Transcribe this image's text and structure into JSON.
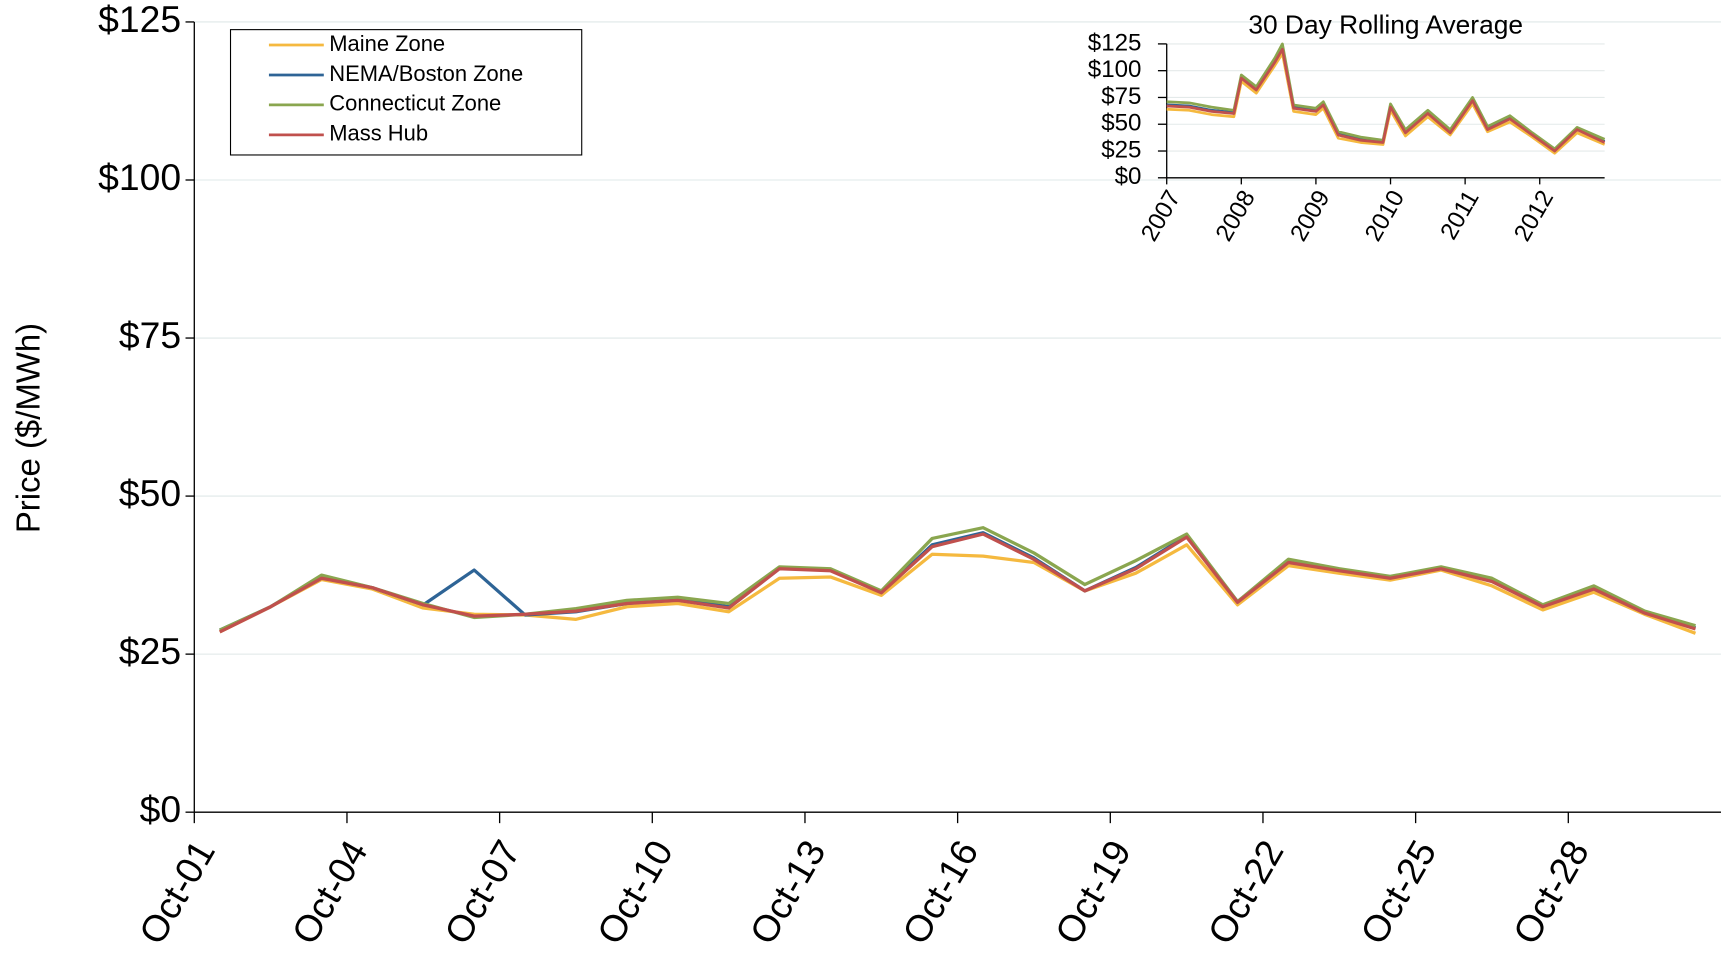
{
  "chart_data": [
    {
      "type": "line",
      "ylabel": "Price ($/MWh)",
      "categories": [
        "Oct-01",
        null,
        null,
        "Oct-04",
        null,
        null,
        "Oct-07",
        null,
        null,
        "Oct-10",
        null,
        null,
        "Oct-13",
        null,
        null,
        "Oct-16",
        null,
        null,
        "Oct-19",
        null,
        null,
        "Oct-22",
        null,
        null,
        "Oct-25",
        null,
        null,
        "Oct-28",
        null,
        null
      ],
      "ylim": [
        0,
        125
      ],
      "yticks": [
        {
          "value": 0,
          "label": "$0"
        },
        {
          "value": 25,
          "label": "$25"
        },
        {
          "value": 50,
          "label": "$50"
        },
        {
          "value": 75,
          "label": "$75"
        },
        {
          "value": 100,
          "label": "$100"
        },
        {
          "value": 125,
          "label": "$125"
        }
      ],
      "grid": true,
      "legend": "upper left",
      "series": [
        {
          "name": "Maine Zone",
          "color": "#f5b93f",
          "values": [
            28.5,
            32.5,
            36.8,
            35.3,
            32.3,
            31.3,
            31.2,
            30.5,
            32.5,
            33,
            31.7,
            37,
            37.2,
            34.3,
            40.8,
            40.5,
            39.5,
            35,
            37.8,
            42.3,
            32.8,
            39,
            37.8,
            36.7,
            38.3,
            35.8,
            32,
            34.8,
            31.3,
            28.3
          ]
        },
        {
          "name": "NEMA/Boston Zone",
          "color": "#2e6496",
          "values": [
            28.8,
            32.5,
            37.3,
            35.5,
            32.8,
            38.3,
            31.2,
            31.7,
            33,
            33.7,
            32.5,
            38.7,
            38.3,
            34.8,
            42.3,
            44.2,
            40.2,
            35,
            38.7,
            43.7,
            33.3,
            39.6,
            38.3,
            37.1,
            38.6,
            36.7,
            32.7,
            35.5,
            31.6,
            29.2
          ]
        },
        {
          "name": "Connecticut Zone",
          "color": "#8aa64f",
          "values": [
            28.8,
            32.5,
            37.5,
            35.5,
            33,
            30.8,
            31.3,
            32.2,
            33.5,
            34,
            33,
            38.8,
            38.5,
            35,
            43.3,
            45,
            41,
            36,
            39.8,
            44,
            33.3,
            40,
            38.5,
            37.3,
            38.8,
            37,
            32.8,
            35.8,
            31.8,
            29.5
          ]
        },
        {
          "name": "Mass Hub",
          "color": "#c0504d",
          "values": [
            28.5,
            32.5,
            37,
            35.5,
            32.8,
            31,
            31.3,
            31.8,
            33,
            33.5,
            32.3,
            38.5,
            38.2,
            34.7,
            42,
            44,
            40,
            35,
            38.5,
            43.5,
            33.2,
            39.5,
            38.2,
            37,
            38.5,
            36.5,
            32.5,
            35.3,
            31.5,
            29
          ]
        }
      ]
    },
    {
      "type": "line",
      "title": "30 Day Rolling Average",
      "x": [
        2007,
        2007.3,
        2007.6,
        2007.9,
        2008.0,
        2008.2,
        2008.45,
        2008.55,
        2008.7,
        2009.0,
        2009.1,
        2009.3,
        2009.6,
        2009.9,
        2010.0,
        2010.2,
        2010.5,
        2010.8,
        2011.1,
        2011.3,
        2011.6,
        2011.9,
        2012.2,
        2012.5,
        2012.87
      ],
      "xlim": [
        2007,
        2012.87
      ],
      "xticks": [
        2007,
        2008,
        2009,
        2010,
        2011,
        2012
      ],
      "ylim": [
        0,
        125
      ],
      "yticks": [
        {
          "value": 0,
          "label": "$0"
        },
        {
          "value": 25,
          "label": "$25"
        },
        {
          "value": 50,
          "label": "$50"
        },
        {
          "value": 75,
          "label": "$75"
        },
        {
          "value": 100,
          "label": "$100"
        },
        {
          "value": 125,
          "label": "$125"
        }
      ],
      "grid": true,
      "series": [
        {
          "color": "#f5b93f",
          "values": [
            64,
            63,
            59,
            57,
            90,
            79,
            105,
            116,
            62,
            59,
            65,
            37,
            33,
            31,
            63,
            39,
            57,
            40,
            69,
            43,
            52,
            38,
            23,
            42,
            31
          ]
        },
        {
          "color": "#2e6496",
          "values": [
            68,
            67,
            63,
            61,
            94,
            83,
            109,
            121,
            66,
            63,
            69,
            41,
            36,
            34,
            67,
            43,
            61,
            43,
            73,
            46,
            56,
            41,
            26,
            46,
            34
          ]
        },
        {
          "color": "#8aa64f",
          "values": [
            71,
            70,
            66,
            63,
            96,
            85,
            112,
            125,
            68,
            65,
            71,
            43,
            38,
            35,
            69,
            45,
            63,
            45,
            75,
            48,
            58,
            42,
            27,
            47,
            36
          ]
        },
        {
          "color": "#c0504d",
          "values": [
            67,
            66,
            62,
            60,
            93,
            82,
            108,
            120,
            65,
            62,
            68,
            40,
            35,
            33,
            66,
            42,
            60,
            42,
            72,
            45,
            55,
            40,
            25,
            45,
            33
          ]
        }
      ]
    }
  ]
}
